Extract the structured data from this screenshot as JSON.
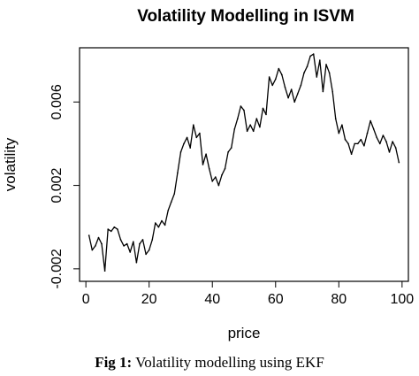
{
  "chart_data": {
    "type": "line",
    "title": "Volatility Modelling in ISVM",
    "xlabel": "price",
    "ylabel": "volatility",
    "xlim": [
      -2,
      102
    ],
    "ylim": [
      -0.0026,
      0.0086
    ],
    "xticks": [
      0,
      20,
      40,
      60,
      80,
      100
    ],
    "xtick_labels": [
      "0",
      "20",
      "40",
      "60",
      "80",
      "100"
    ],
    "yticks": [
      -0.002,
      0.002,
      0.006
    ],
    "ytick_labels": [
      "-0.002",
      "0.002",
      "0.006"
    ],
    "grid": false,
    "legend": "none",
    "line_color": "#000000",
    "series": [
      {
        "x": [
          1,
          2,
          3,
          4,
          5,
          6,
          7,
          8,
          9,
          10,
          11,
          12,
          13,
          14,
          15,
          16,
          17,
          18,
          19,
          20,
          21,
          22,
          23,
          24,
          25,
          26,
          27,
          28,
          29,
          30,
          31,
          32,
          33,
          34,
          35,
          36,
          37,
          38,
          39,
          40,
          41,
          42,
          43,
          44,
          45,
          46,
          47,
          48,
          49,
          50,
          51,
          52,
          53,
          54,
          55,
          56,
          57,
          58,
          59,
          60,
          61,
          62,
          63,
          64,
          65,
          66,
          67,
          68,
          69,
          70,
          71,
          72,
          73,
          74,
          75,
          76,
          77,
          78,
          79,
          80,
          81,
          82,
          83,
          84,
          85,
          86,
          87,
          88,
          89,
          90,
          91,
          92,
          93,
          94,
          95,
          96,
          97,
          98,
          99
        ],
        "values": [
          -0.0004,
          -0.0011,
          -0.0009,
          -0.0005,
          -0.0008,
          -0.0021,
          -0.0001,
          -0.0002,
          0.0,
          -0.0001,
          -0.0006,
          -0.0009,
          -0.0008,
          -0.0012,
          -0.0007,
          -0.0017,
          -0.0008,
          -0.0006,
          -0.0013,
          -0.0011,
          -0.0006,
          0.0002,
          0.0,
          0.0003,
          0.0001,
          0.0008,
          0.0012,
          0.0016,
          0.0026,
          0.0036,
          0.004,
          0.0043,
          0.0038,
          0.0049,
          0.0043,
          0.0045,
          0.003,
          0.0035,
          0.0028,
          0.0022,
          0.0024,
          0.002,
          0.0025,
          0.0028,
          0.0036,
          0.0038,
          0.0047,
          0.0052,
          0.0058,
          0.0056,
          0.0046,
          0.0049,
          0.0046,
          0.0052,
          0.0048,
          0.0057,
          0.0054,
          0.0072,
          0.0068,
          0.0071,
          0.0076,
          0.0073,
          0.0067,
          0.0062,
          0.0066,
          0.006,
          0.0064,
          0.0068,
          0.0074,
          0.0077,
          0.0082,
          0.0083,
          0.0072,
          0.008,
          0.0065,
          0.0078,
          0.0074,
          0.0065,
          0.0052,
          0.0045,
          0.0049,
          0.0042,
          0.004,
          0.0035,
          0.004,
          0.004,
          0.0042,
          0.0039,
          0.0045,
          0.0051,
          0.0047,
          0.0043,
          0.004,
          0.0044,
          0.0041,
          0.0036,
          0.0041,
          0.0038,
          0.0031
        ]
      }
    ]
  },
  "caption": {
    "label": "Fig 1:",
    "text": " Volatility modelling using EKF"
  }
}
